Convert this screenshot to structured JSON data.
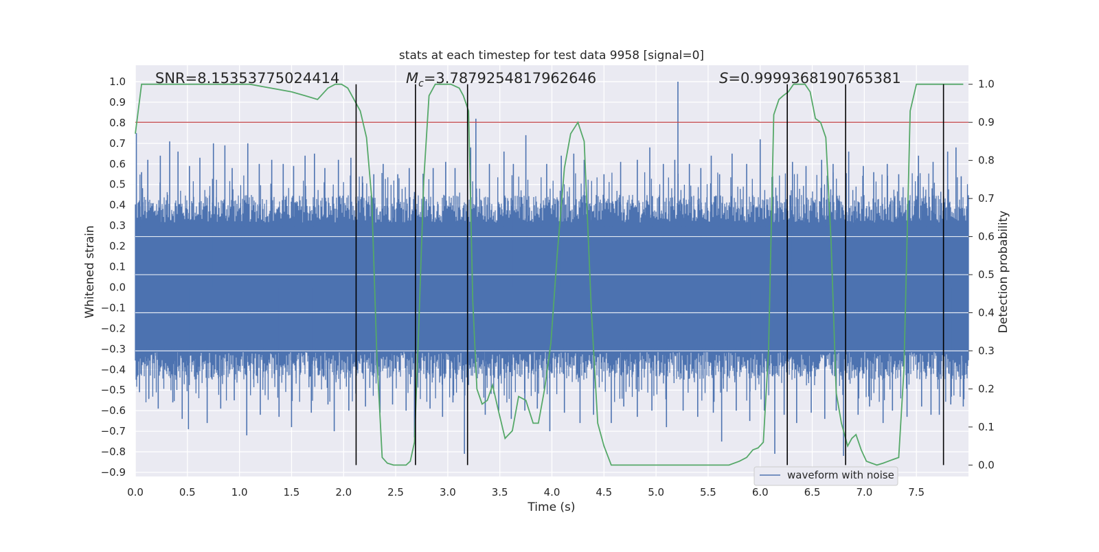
{
  "chart_data": {
    "type": "line",
    "title": "stats at each timestep for test data 9958 [signal=0]",
    "xlabel": "Time (s)",
    "ylabel": "Whitened strain",
    "y2label": "Detection probability",
    "xlim": [
      0,
      8.0
    ],
    "ylim": [
      -0.92,
      1.08
    ],
    "y2lim": [
      -0.03,
      1.05
    ],
    "x_ticks": [
      0.0,
      0.5,
      1.0,
      1.5,
      2.0,
      2.5,
      3.0,
      3.5,
      4.0,
      4.5,
      5.0,
      5.5,
      6.0,
      6.5,
      7.0,
      7.5
    ],
    "x_tick_labels": [
      "0.0",
      "0.5",
      "1.0",
      "1.5",
      "2.0",
      "2.5",
      "3.0",
      "3.5",
      "4.0",
      "4.5",
      "5.0",
      "5.5",
      "6.0",
      "6.5",
      "7.0",
      "7.5"
    ],
    "y_ticks": [
      1.0,
      0.9,
      0.8,
      0.7,
      0.6,
      0.5,
      0.4,
      0.3,
      0.2,
      0.1,
      0.0,
      -0.1,
      -0.2,
      -0.3,
      -0.4,
      -0.5,
      -0.6,
      -0.7,
      -0.8,
      -0.9
    ],
    "y_tick_labels": [
      "1.0",
      "0.9",
      "0.8",
      "0.7",
      "0.6",
      "0.5",
      "0.4",
      "0.3",
      "0.2",
      "0.1",
      "0.0",
      "−0.1",
      "−0.2",
      "−0.3",
      "−0.4",
      "−0.5",
      "−0.6",
      "−0.7",
      "−0.8",
      "−0.9"
    ],
    "y2_ticks": [
      1.0,
      0.9,
      0.8,
      0.7,
      0.6,
      0.5,
      0.4,
      0.3,
      0.2,
      0.1,
      0.0
    ],
    "y2_tick_labels": [
      "1.0",
      "0.9",
      "0.8",
      "0.7",
      "0.6",
      "0.5",
      "0.4",
      "0.3",
      "0.2",
      "0.1",
      "0.0"
    ],
    "grid": true,
    "legend": {
      "placement": "lower-right",
      "entries": [
        {
          "label": "waveform with noise",
          "color": "#4c72b0"
        }
      ]
    },
    "annotations": {
      "snr_text": "SNR=8.15353775024414",
      "mc_symbol": "M",
      "mc_sub": "c",
      "mc_value": "=3.7879254817962646",
      "s_symbol": "S",
      "s_value": "=0.9999368190765381"
    },
    "threshold": {
      "y2": 0.9,
      "color": "#c44e52"
    },
    "vlines": {
      "x": [
        2.12,
        2.69,
        3.19,
        6.26,
        6.82,
        7.76
      ],
      "y2_range": [
        0.0,
        1.0
      ],
      "color": "#000000"
    },
    "waveform": {
      "name": "waveform with noise",
      "color": "#4c72b0",
      "band_envelope": 0.45,
      "spikes": [
        {
          "x": 0.01,
          "y": 0.75
        },
        {
          "x": 0.06,
          "y": 0.56
        },
        {
          "x": 0.12,
          "y": 0.62
        },
        {
          "x": 0.24,
          "y": 0.64
        },
        {
          "x": 0.33,
          "y": 0.71
        },
        {
          "x": 0.41,
          "y": 0.66
        },
        {
          "x": 0.52,
          "y": 0.59
        },
        {
          "x": 0.62,
          "y": 0.63
        },
        {
          "x": 0.75,
          "y": 0.7
        },
        {
          "x": 0.86,
          "y": 0.69
        },
        {
          "x": 0.93,
          "y": 0.58
        },
        {
          "x": 1.08,
          "y": 0.7
        },
        {
          "x": 1.19,
          "y": 0.6
        },
        {
          "x": 1.31,
          "y": 0.62
        },
        {
          "x": 1.42,
          "y": 0.6
        },
        {
          "x": 1.52,
          "y": 0.59
        },
        {
          "x": 1.63,
          "y": 0.64
        },
        {
          "x": 1.72,
          "y": 0.65
        },
        {
          "x": 1.82,
          "y": 0.58
        },
        {
          "x": 1.95,
          "y": 0.62
        },
        {
          "x": 2.07,
          "y": 0.63
        },
        {
          "x": 2.18,
          "y": 0.54
        },
        {
          "x": 2.29,
          "y": 0.55
        },
        {
          "x": 2.38,
          "y": 0.6
        },
        {
          "x": 2.52,
          "y": 0.55
        },
        {
          "x": 2.63,
          "y": 0.58
        },
        {
          "x": 2.86,
          "y": 0.58
        },
        {
          "x": 2.98,
          "y": 0.61
        },
        {
          "x": 3.07,
          "y": 0.58
        },
        {
          "x": 3.22,
          "y": 0.68
        },
        {
          "x": 3.27,
          "y": 0.82
        },
        {
          "x": 3.4,
          "y": 0.6
        },
        {
          "x": 3.54,
          "y": 0.66
        },
        {
          "x": 3.63,
          "y": 0.6
        },
        {
          "x": 3.75,
          "y": 0.74
        },
        {
          "x": 3.95,
          "y": 0.6
        },
        {
          "x": 4.09,
          "y": 0.64
        },
        {
          "x": 4.21,
          "y": 0.65
        },
        {
          "x": 4.31,
          "y": 0.62
        },
        {
          "x": 4.5,
          "y": 0.55
        },
        {
          "x": 4.66,
          "y": 0.61
        },
        {
          "x": 4.82,
          "y": 0.62
        },
        {
          "x": 4.94,
          "y": 0.68
        },
        {
          "x": 5.07,
          "y": 0.6
        },
        {
          "x": 5.18,
          "y": 0.62
        },
        {
          "x": 5.21,
          "y": 1.0
        },
        {
          "x": 5.32,
          "y": 0.6
        },
        {
          "x": 5.43,
          "y": 0.58
        },
        {
          "x": 5.53,
          "y": 0.64
        },
        {
          "x": 5.61,
          "y": 0.55
        },
        {
          "x": 5.73,
          "y": 0.65
        },
        {
          "x": 5.87,
          "y": 0.6
        },
        {
          "x": 6.0,
          "y": 0.72
        },
        {
          "x": 6.12,
          "y": 0.54
        },
        {
          "x": 6.31,
          "y": 0.61
        },
        {
          "x": 6.44,
          "y": 0.59
        },
        {
          "x": 6.59,
          "y": 0.62
        },
        {
          "x": 6.7,
          "y": 0.6
        },
        {
          "x": 6.85,
          "y": 0.66
        },
        {
          "x": 6.99,
          "y": 0.59
        },
        {
          "x": 7.09,
          "y": 0.56
        },
        {
          "x": 7.22,
          "y": 0.6
        },
        {
          "x": 7.33,
          "y": 0.55
        },
        {
          "x": 7.52,
          "y": 0.64
        },
        {
          "x": 7.66,
          "y": 0.61
        },
        {
          "x": 7.8,
          "y": 0.66
        },
        {
          "x": 7.88,
          "y": 0.68
        },
        {
          "x": 7.93,
          "y": 0.54
        },
        {
          "x": 0.04,
          "y": -0.51
        },
        {
          "x": 0.13,
          "y": -0.54
        },
        {
          "x": 0.22,
          "y": -0.59
        },
        {
          "x": 0.36,
          "y": -0.56
        },
        {
          "x": 0.45,
          "y": -0.64
        },
        {
          "x": 0.51,
          "y": -0.69
        },
        {
          "x": 0.69,
          "y": -0.66
        },
        {
          "x": 0.82,
          "y": -0.59
        },
        {
          "x": 0.95,
          "y": -0.55
        },
        {
          "x": 1.07,
          "y": -0.72
        },
        {
          "x": 1.2,
          "y": -0.62
        },
        {
          "x": 1.38,
          "y": -0.63
        },
        {
          "x": 1.5,
          "y": -0.68
        },
        {
          "x": 1.69,
          "y": -0.61
        },
        {
          "x": 1.85,
          "y": -0.57
        },
        {
          "x": 1.91,
          "y": -0.7
        },
        {
          "x": 2.05,
          "y": -0.6
        },
        {
          "x": 2.21,
          "y": -0.58
        },
        {
          "x": 2.35,
          "y": -0.61
        },
        {
          "x": 2.47,
          "y": -0.57
        },
        {
          "x": 2.6,
          "y": -0.6
        },
        {
          "x": 2.68,
          "y": -0.73
        },
        {
          "x": 2.83,
          "y": -0.59
        },
        {
          "x": 2.95,
          "y": -0.63
        },
        {
          "x": 3.05,
          "y": -0.56
        },
        {
          "x": 3.16,
          "y": -0.81
        },
        {
          "x": 3.36,
          "y": -0.62
        },
        {
          "x": 3.49,
          "y": -0.6
        },
        {
          "x": 3.61,
          "y": -0.64
        },
        {
          "x": 3.74,
          "y": -0.6
        },
        {
          "x": 3.86,
          "y": -0.59
        },
        {
          "x": 3.98,
          "y": -0.7
        },
        {
          "x": 4.12,
          "y": -0.61
        },
        {
          "x": 4.27,
          "y": -0.66
        },
        {
          "x": 4.4,
          "y": -0.62
        },
        {
          "x": 4.57,
          "y": -0.66
        },
        {
          "x": 4.69,
          "y": -0.58
        },
        {
          "x": 4.82,
          "y": -0.63
        },
        {
          "x": 4.96,
          "y": -0.6
        },
        {
          "x": 5.1,
          "y": -0.68
        },
        {
          "x": 5.26,
          "y": -0.6
        },
        {
          "x": 5.4,
          "y": -0.63
        },
        {
          "x": 5.55,
          "y": -0.61
        },
        {
          "x": 5.63,
          "y": -0.75
        },
        {
          "x": 5.77,
          "y": -0.6
        },
        {
          "x": 5.9,
          "y": -0.65
        },
        {
          "x": 6.04,
          "y": -0.6
        },
        {
          "x": 6.14,
          "y": -0.81
        },
        {
          "x": 6.23,
          "y": -0.62
        },
        {
          "x": 6.35,
          "y": -0.66
        },
        {
          "x": 6.49,
          "y": -0.61
        },
        {
          "x": 6.62,
          "y": -0.64
        },
        {
          "x": 6.73,
          "y": -0.6
        },
        {
          "x": 6.8,
          "y": -0.82
        },
        {
          "x": 6.94,
          "y": -0.62
        },
        {
          "x": 7.05,
          "y": -0.58
        },
        {
          "x": 7.18,
          "y": -0.66
        },
        {
          "x": 7.27,
          "y": -0.6
        },
        {
          "x": 7.41,
          "y": -0.63
        },
        {
          "x": 7.55,
          "y": -0.58
        },
        {
          "x": 7.64,
          "y": -0.62
        },
        {
          "x": 7.72,
          "y": -0.62
        },
        {
          "x": 7.83,
          "y": -0.57
        },
        {
          "x": 7.95,
          "y": -0.58
        }
      ]
    },
    "probability": {
      "color": "#55a868",
      "x": [
        0.0,
        0.06,
        0.15,
        0.3,
        0.5,
        0.7,
        0.9,
        1.1,
        1.3,
        1.5,
        1.63,
        1.75,
        1.85,
        1.92,
        1.98,
        2.04,
        2.1,
        2.16,
        2.22,
        2.27,
        2.32,
        2.37,
        2.42,
        2.48,
        2.55,
        2.6,
        2.64,
        2.68,
        2.72,
        2.77,
        2.82,
        2.88,
        2.95,
        3.03,
        3.11,
        3.15,
        3.2,
        3.24,
        3.28,
        3.33,
        3.38,
        3.43,
        3.48,
        3.55,
        3.62,
        3.68,
        3.75,
        3.82,
        3.87,
        3.93,
        3.99,
        4.05,
        4.12,
        4.18,
        4.25,
        4.31,
        4.38,
        4.44,
        4.5,
        4.57,
        4.63,
        4.7,
        4.8,
        4.9,
        5.0,
        5.1,
        5.2,
        5.3,
        5.4,
        5.5,
        5.6,
        5.7,
        5.8,
        5.87,
        5.93,
        5.98,
        6.03,
        6.08,
        6.13,
        6.18,
        6.22,
        6.27,
        6.32,
        6.37,
        6.43,
        6.48,
        6.53,
        6.58,
        6.63,
        6.68,
        6.73,
        6.78,
        6.84,
        6.88,
        6.92,
        6.97,
        7.02,
        7.07,
        7.12,
        7.18,
        7.23,
        7.28,
        7.33,
        7.38,
        7.44,
        7.5,
        7.56,
        7.62,
        7.67,
        7.71,
        7.74,
        7.77,
        7.81,
        7.85,
        7.9,
        7.95
      ],
      "y": [
        0.87,
        1.0,
        1.0,
        1.0,
        1.0,
        1.0,
        1.0,
        1.0,
        0.99,
        0.98,
        0.97,
        0.96,
        0.99,
        1.0,
        1.0,
        0.99,
        0.96,
        0.93,
        0.86,
        0.7,
        0.28,
        0.02,
        0.005,
        0.0,
        0.0,
        0.0,
        0.01,
        0.06,
        0.35,
        0.75,
        0.97,
        1.0,
        1.0,
        1.0,
        0.99,
        0.97,
        0.93,
        0.43,
        0.2,
        0.16,
        0.17,
        0.21,
        0.15,
        0.07,
        0.09,
        0.18,
        0.17,
        0.11,
        0.11,
        0.2,
        0.32,
        0.55,
        0.78,
        0.87,
        0.9,
        0.85,
        0.4,
        0.11,
        0.05,
        0.0,
        0.0,
        0.0,
        0.0,
        0.0,
        0.0,
        0.0,
        0.0,
        0.0,
        0.0,
        0.0,
        0.0,
        0.0,
        0.01,
        0.02,
        0.04,
        0.045,
        0.06,
        0.3,
        0.92,
        0.96,
        0.97,
        0.98,
        1.0,
        1.0,
        1.0,
        0.98,
        0.91,
        0.9,
        0.86,
        0.59,
        0.19,
        0.11,
        0.05,
        0.07,
        0.08,
        0.04,
        0.01,
        0.005,
        0.0,
        0.005,
        0.01,
        0.015,
        0.02,
        0.25,
        0.93,
        1.0,
        1.0,
        1.0,
        1.0,
        1.0,
        1.0,
        1.0,
        1.0,
        1.0,
        1.0,
        1.0
      ]
    }
  }
}
